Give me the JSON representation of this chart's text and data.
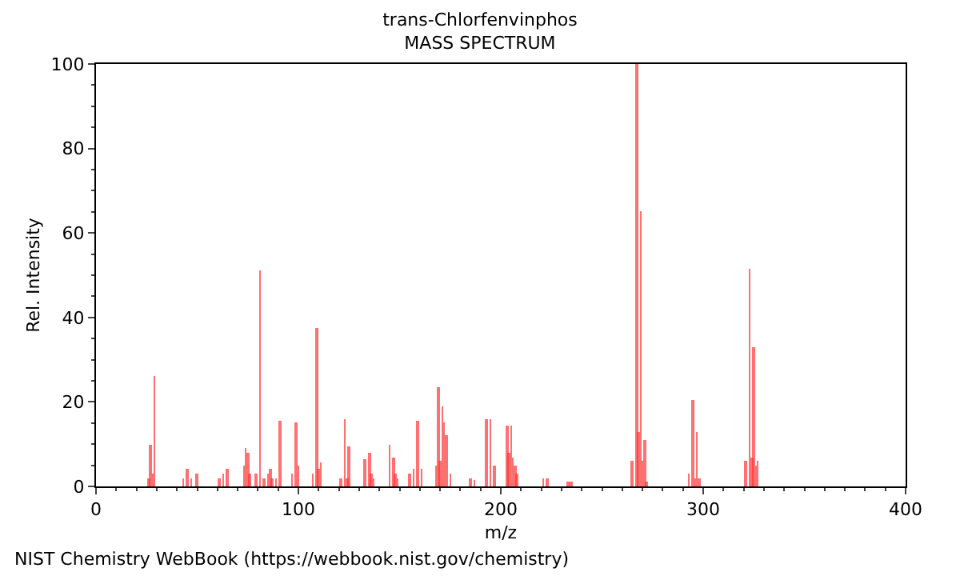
{
  "chart_data": {
    "type": "bar",
    "title": "trans-Chlorfenvinphos",
    "subtitle": "MASS SPECTRUM",
    "xlabel": "m/z",
    "ylabel": "Rel. Intensity",
    "x": [
      26,
      27,
      28,
      29,
      43,
      45,
      47,
      50,
      61,
      63,
      65,
      73,
      74,
      75,
      76,
      79,
      81,
      83,
      85,
      86,
      87,
      89,
      91,
      97,
      99,
      100,
      107,
      109,
      110,
      111,
      121,
      123,
      124,
      125,
      133,
      135,
      136,
      137,
      145,
      147,
      148,
      149,
      155,
      157,
      159,
      161,
      168,
      169,
      170,
      171,
      172,
      173,
      175,
      185,
      187,
      193,
      195,
      197,
      203,
      204,
      205,
      206,
      207,
      208,
      221,
      223,
      233,
      235,
      265,
      267,
      268,
      269,
      270,
      271,
      272,
      293,
      295,
      296,
      297,
      298,
      321,
      323,
      324,
      325,
      326,
      327
    ],
    "values": [
      2,
      10,
      3,
      26,
      2,
      4,
      2,
      3,
      2,
      3,
      4,
      5,
      9,
      8,
      3,
      3,
      51,
      2,
      3,
      4,
      2,
      2,
      15.5,
      3,
      15,
      5,
      3,
      37.5,
      4,
      5.5,
      2,
      16,
      2,
      9.5,
      6.5,
      8,
      3,
      2,
      10,
      7,
      3,
      2,
      3,
      4,
      15.5,
      4,
      5,
      23.5,
      6,
      19,
      15,
      12,
      3,
      2,
      1.5,
      16,
      16,
      5,
      14.5,
      8,
      14.5,
      7,
      5,
      3,
      2,
      2,
      1,
      1,
      6,
      100,
      13,
      65,
      6,
      11,
      1,
      3,
      20.5,
      2,
      13,
      2,
      6,
      51.5,
      7,
      33,
      5,
      6
    ],
    "color": "#ff3333",
    "xlim": [
      0,
      400
    ],
    "xticks": [
      0,
      100,
      200,
      300,
      400
    ],
    "ylim": [
      0,
      100
    ],
    "yticks": [
      0,
      20,
      40,
      60,
      80,
      100
    ],
    "annotations": [
      "NIST Chemistry WebBook (https://webbook.nist.gov/chemistry)"
    ]
  }
}
